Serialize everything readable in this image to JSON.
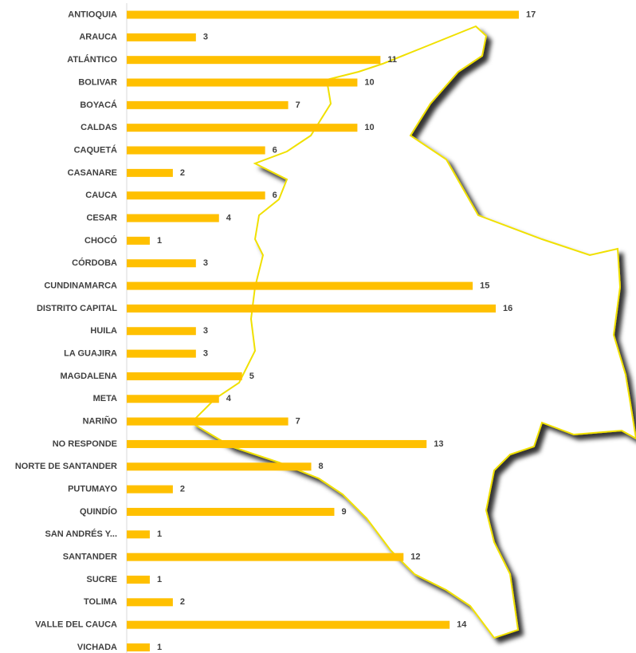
{
  "chart_data": {
    "type": "bar",
    "orientation": "horizontal",
    "color": "#ffc000",
    "categories": [
      "ANTIOQUIA",
      "ARAUCA",
      "ATLÁNTICO",
      "BOLIVAR",
      "BOYACÁ",
      "CALDAS",
      "CAQUETÁ",
      "CASANARE",
      "CAUCA",
      "CESAR",
      "CHOCÓ",
      "CÓRDOBA",
      "CUNDINAMARCA",
      "DISTRITO CAPITAL",
      "HUILA",
      "LA GUAJIRA",
      "MAGDALENA",
      "META",
      "NARIÑO",
      "NO RESPONDE",
      "NORTE DE SANTANDER",
      "PUTUMAYO",
      "QUINDÍO",
      "SAN ANDRÉS Y...",
      "SANTANDER",
      "SUCRE",
      "TOLIMA",
      "VALLE DEL CAUCA",
      "VICHADA"
    ],
    "values": [
      17,
      3,
      11,
      10,
      7,
      10,
      6,
      2,
      6,
      4,
      1,
      3,
      15,
      16,
      3,
      3,
      5,
      4,
      7,
      13,
      8,
      2,
      9,
      1,
      12,
      1,
      2,
      14,
      1
    ]
  }
}
